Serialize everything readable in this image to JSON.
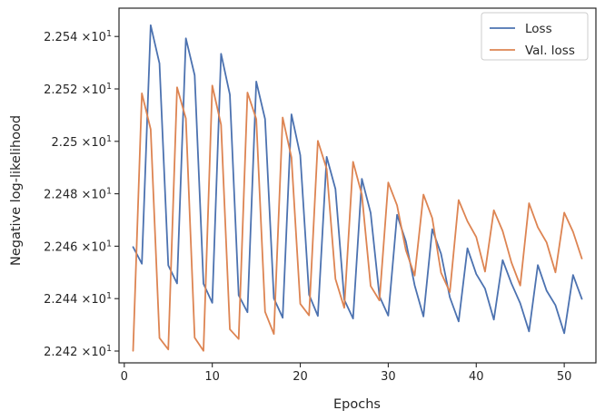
{
  "chart_data": {
    "type": "line",
    "xlabel": "Epochs",
    "ylabel": "Negative log-likelihood",
    "xlim": [
      -0.6,
      53.6
    ],
    "ylim": [
      22.4155,
      22.5508
    ],
    "x_ticks": [
      0,
      10,
      20,
      30,
      40,
      50
    ],
    "x_tick_labels": [
      "0",
      "10",
      "20",
      "30",
      "40",
      "50"
    ],
    "y_ticks": [
      22.42,
      22.44,
      22.46,
      22.48,
      22.5,
      22.52,
      22.54
    ],
    "y_tick_labels": [
      {
        "mantissa": "2.242",
        "times": "×10",
        "exp": "1"
      },
      {
        "mantissa": "2.244",
        "times": "×10",
        "exp": "1"
      },
      {
        "mantissa": "2.246",
        "times": "×10",
        "exp": "1"
      },
      {
        "mantissa": "2.248",
        "times": "×10",
        "exp": "1"
      },
      {
        "mantissa": "2.25",
        "times": "×10",
        "exp": "1"
      },
      {
        "mantissa": "2.252",
        "times": "×10",
        "exp": "1"
      },
      {
        "mantissa": "2.254",
        "times": "×10",
        "exp": "1"
      }
    ],
    "legend_position": "top-right",
    "grid": false,
    "x": [
      1,
      2,
      3,
      4,
      5,
      6,
      7,
      8,
      9,
      10,
      11,
      12,
      13,
      14,
      15,
      16,
      17,
      18,
      19,
      20,
      21,
      22,
      23,
      24,
      25,
      26,
      27,
      28,
      29,
      30,
      31,
      32,
      33,
      34,
      35,
      36,
      37,
      38,
      39,
      40,
      41,
      42,
      43,
      44,
      45,
      46,
      47,
      48,
      49,
      50,
      51,
      52
    ],
    "series": [
      {
        "name": "Loss",
        "color": "#4c72b0",
        "values": [
          22.4597,
          22.4533,
          22.5443,
          22.5297,
          22.4527,
          22.4458,
          22.5393,
          22.5252,
          22.4457,
          22.4384,
          22.5334,
          22.5178,
          22.4413,
          22.4348,
          22.5228,
          22.5085,
          22.4401,
          22.4327,
          22.5103,
          22.4947,
          22.4415,
          22.4334,
          22.4941,
          22.4818,
          22.4396,
          22.4324,
          22.4857,
          22.4727,
          22.4409,
          22.4335,
          22.472,
          22.4618,
          22.4451,
          22.4332,
          22.4665,
          22.4571,
          22.4405,
          22.4313,
          22.4592,
          22.4494,
          22.4438,
          22.432,
          22.4547,
          22.4458,
          22.4382,
          22.4275,
          22.4528,
          22.443,
          22.4375,
          22.4268,
          22.449,
          22.4399
        ]
      },
      {
        "name": "Val. loss",
        "color": "#dd8452",
        "values": [
          22.4201,
          22.5183,
          22.5046,
          22.425,
          22.4206,
          22.5206,
          22.5087,
          22.4251,
          22.4201,
          22.5213,
          22.5063,
          22.4283,
          22.4246,
          22.5186,
          22.5085,
          22.435,
          22.4265,
          22.5091,
          22.4938,
          22.438,
          22.4336,
          22.5002,
          22.4895,
          22.4475,
          22.4365,
          22.4922,
          22.4797,
          22.4448,
          22.4393,
          22.4843,
          22.4756,
          22.4585,
          22.4488,
          22.4797,
          22.4707,
          22.4499,
          22.4425,
          22.4776,
          22.4695,
          22.4635,
          22.4503,
          22.4737,
          22.4658,
          22.4538,
          22.445,
          22.4764,
          22.4672,
          22.4614,
          22.45,
          22.4728,
          22.4655,
          22.4553
        ]
      }
    ]
  }
}
